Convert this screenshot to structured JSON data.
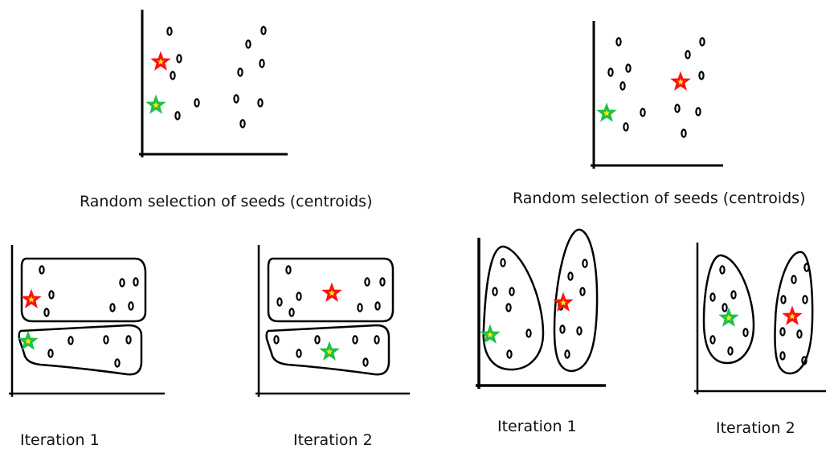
{
  "captions": {
    "top_left": "Random selection of seeds (centroids)",
    "top_right": "Random selection of seeds (centroids)",
    "bottom_1": "Iteration 1",
    "bottom_2": "Iteration 2",
    "bottom_3": "Iteration 1",
    "bottom_4": "Iteration 2"
  },
  "colors": {
    "red_star": "#ff1010",
    "green_star": "#1fbf4a",
    "star_center": "#ffe800",
    "ink": "#000000"
  }
}
